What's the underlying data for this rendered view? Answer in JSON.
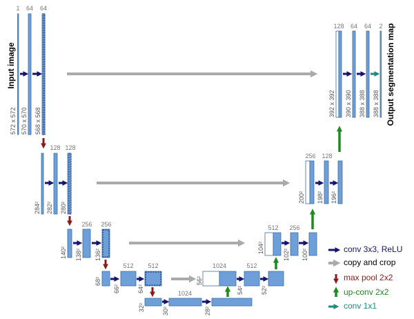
{
  "input_label": "Input image",
  "output_label": "Output segmentation map",
  "encoder": [
    {
      "channels": [
        1,
        64,
        64
      ],
      "sizes": [
        "572 x 572",
        "570 x 570",
        "568 x 568"
      ]
    },
    {
      "channels": [
        128,
        128
      ],
      "sizes": [
        "284²",
        "282²",
        "280²"
      ]
    },
    {
      "channels": [
        256,
        256
      ],
      "sizes": [
        "140²",
        "138²",
        "136²"
      ]
    },
    {
      "channels": [
        512,
        512
      ],
      "sizes": [
        "68²",
        "66²",
        "64²"
      ]
    }
  ],
  "bottleneck": {
    "channels": [
      1024
    ],
    "sizes": [
      "32²",
      "30²",
      "28²"
    ]
  },
  "decoder": [
    {
      "channels": [
        1024,
        512
      ],
      "sizes": [
        "56²",
        "54²",
        "52²"
      ]
    },
    {
      "channels": [
        512,
        256
      ],
      "sizes": [
        "104²",
        "102²",
        "100²"
      ]
    },
    {
      "channels": [
        256,
        128
      ],
      "sizes": [
        "200²",
        "198²",
        "196²"
      ]
    },
    {
      "channels": [
        128,
        64,
        64,
        2
      ],
      "sizes": [
        "392 x 392",
        "390 x 390",
        "388 x 388",
        "388 x 388"
      ]
    }
  ],
  "legend": [
    "conv 3x3, ReLU",
    "copy and crop",
    "max pool 2x2",
    "up-conv 2x2",
    "conv 1x1"
  ]
}
